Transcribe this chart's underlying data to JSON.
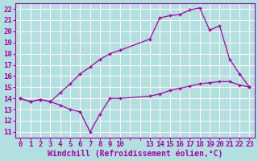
{
  "background_color": "#b2dfdf",
  "grid_color": "#ffffff",
  "line_color": "#aa00aa",
  "ylim": [
    10.5,
    22.5
  ],
  "yticks": [
    11,
    12,
    13,
    14,
    15,
    16,
    17,
    18,
    19,
    20,
    21,
    22
  ],
  "xlabel": "Windchill (Refroidissement éolien,°C)",
  "xlabel_fontsize": 7.0,
  "tick_fontsize": 6.5,
  "series1_x": [
    0,
    1,
    2,
    3,
    4,
    5,
    6,
    7,
    8,
    9,
    10,
    13,
    14,
    15,
    16,
    17,
    18,
    19,
    20,
    21,
    22,
    23
  ],
  "series1_y": [
    14.0,
    13.7,
    13.9,
    13.7,
    13.4,
    13.0,
    12.8,
    11.0,
    12.6,
    14.0,
    14.0,
    14.2,
    14.4,
    14.7,
    14.9,
    15.1,
    15.3,
    15.4,
    15.5,
    15.5,
    15.2,
    15.0
  ],
  "series2_x": [
    0,
    1,
    2,
    3,
    4,
    5,
    6,
    7,
    8,
    9,
    10,
    13,
    14,
    15,
    16,
    17,
    18,
    19,
    20,
    21,
    22,
    23
  ],
  "series2_y": [
    14.0,
    13.7,
    13.9,
    13.7,
    14.5,
    15.3,
    16.2,
    16.8,
    17.5,
    18.0,
    18.3,
    19.3,
    21.2,
    21.4,
    21.5,
    21.9,
    22.1,
    20.1,
    20.5,
    17.5,
    16.2,
    15.0
  ],
  "xtick_labels": [
    "0",
    "1",
    "2",
    "3",
    "4",
    "5",
    "6",
    "7",
    "8",
    "9",
    "10",
    "",
    "",
    "13",
    "14",
    "15",
    "16",
    "17",
    "18",
    "19",
    "20",
    "21",
    "22",
    "23"
  ],
  "xtick_positions": [
    0,
    1,
    2,
    3,
    4,
    5,
    6,
    7,
    8,
    9,
    10,
    11,
    12,
    13,
    14,
    15,
    16,
    17,
    18,
    19,
    20,
    21,
    22,
    23
  ],
  "xlim": [
    -0.5,
    23.5
  ]
}
